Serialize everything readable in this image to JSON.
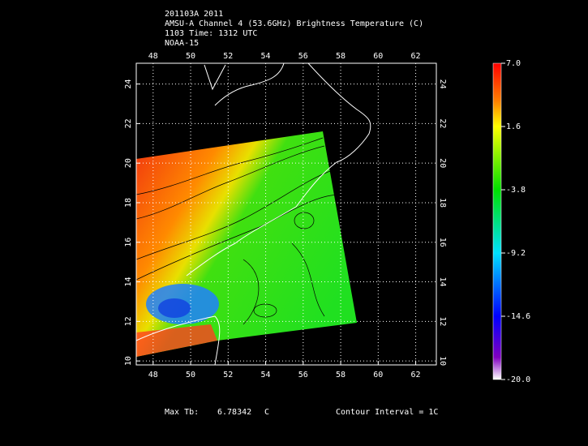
{
  "header": {
    "lines": [
      "201103A 2011",
      "AMSU-A Channel 4 (53.6GHz) Brightness Temperature (C)",
      "1103 Time: 1312 UTC",
      "NOAA-15"
    ]
  },
  "map": {
    "xlim": [
      47.1,
      63.1
    ],
    "ylim": [
      9.8,
      25.05
    ],
    "xticks": [
      48,
      50,
      52,
      54,
      56,
      58,
      60,
      62
    ],
    "yticks": [
      10,
      12,
      14,
      16,
      18,
      20,
      22,
      24
    ]
  },
  "colorbar": {
    "lim": [
      -20,
      7
    ],
    "ticks": [
      {
        "value": 7,
        "label": "7.0"
      },
      1.6,
      -3.8,
      -9.2,
      -14.6,
      {
        "value": -20,
        "label": "-20.0"
      }
    ]
  },
  "footer": {
    "max_label": "Max Tb:",
    "max_value": "6.78342",
    "max_unit": "C",
    "contour": "Contour Interval = 1C"
  }
}
